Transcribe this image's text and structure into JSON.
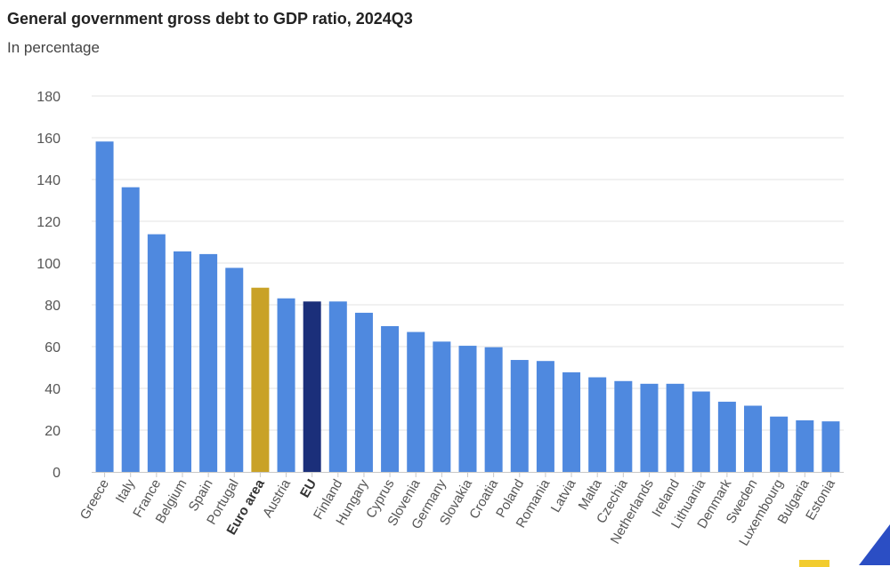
{
  "chart_data": {
    "type": "bar",
    "title": "General government gross debt to GDP ratio, 2024Q3",
    "subtitle": "In percentage",
    "xlabel": "",
    "ylabel": "",
    "ylim": [
      0,
      180
    ],
    "yticks": [
      0,
      20,
      40,
      60,
      80,
      100,
      120,
      140,
      160,
      180
    ],
    "grid": true,
    "categories": [
      "Greece",
      "Italy",
      "France",
      "Belgium",
      "Spain",
      "Portugal",
      "Euro area",
      "Austria",
      "EU",
      "Finland",
      "Hungary",
      "Cyprus",
      "Slovenia",
      "Germany",
      "Slovakia",
      "Croatia",
      "Poland",
      "Romania",
      "Latvia",
      "Malta",
      "Czechia",
      "Netherlands",
      "Ireland",
      "Lithuania",
      "Denmark",
      "Sweden",
      "Luxembourg",
      "Bulgaria",
      "Estonia"
    ],
    "values": [
      158.2,
      136.3,
      113.8,
      105.6,
      104.3,
      97.7,
      88.2,
      83.1,
      81.6,
      81.6,
      76.2,
      69.8,
      67.0,
      62.4,
      60.4,
      59.7,
      53.6,
      53.1,
      47.7,
      45.3,
      43.5,
      42.2,
      42.2,
      38.5,
      33.6,
      31.7,
      26.5,
      24.7,
      24.2
    ],
    "highlight": [
      "Euro area",
      "EU"
    ],
    "colors": {
      "default": "#4f89df",
      "Euro area": "#c9a227",
      "EU": "#1b2f7a",
      "grid": "#e3e3e3",
      "axis": "#c8c8c8"
    }
  }
}
